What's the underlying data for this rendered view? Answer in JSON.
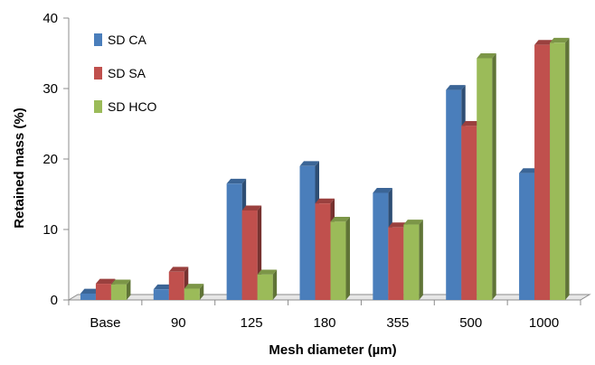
{
  "chart_data": {
    "type": "bar",
    "title": "",
    "xlabel": "Mesh diameter (µm)",
    "ylabel": "Retained mass (%)",
    "ylim": [
      0,
      40
    ],
    "yticks": [
      "0",
      "10",
      "20",
      "30",
      "40"
    ],
    "categories": [
      "Base",
      "90",
      "125",
      "180",
      "355",
      "500",
      "1000"
    ],
    "grid": false,
    "three_d": true,
    "legend_position": "top-left",
    "series": [
      {
        "name": "SD CA",
        "color": "#4a7ebb",
        "values": [
          0.9,
          1.5,
          16.5,
          19.0,
          15.2,
          29.8,
          18.0
        ]
      },
      {
        "name": "SD SA",
        "color": "#c0504d",
        "values": [
          2.3,
          4.0,
          12.7,
          13.7,
          10.3,
          24.7,
          36.2
        ]
      },
      {
        "name": "SD HCO",
        "color": "#9bbb59",
        "values": [
          2.2,
          1.6,
          3.6,
          11.1,
          10.7,
          34.3,
          36.5
        ]
      }
    ]
  }
}
